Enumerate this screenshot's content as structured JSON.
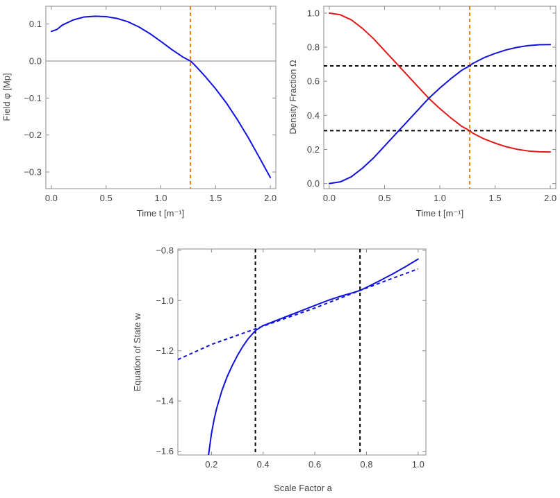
{
  "chart_data": [
    {
      "id": "field",
      "type": "line",
      "xlabel": "Time  t [m⁻¹]",
      "ylabel": "Field  φ [Mp]",
      "xlim": [
        -0.05,
        2.05
      ],
      "ylim": [
        -0.345,
        0.148
      ],
      "xticks": [
        0.0,
        0.5,
        1.0,
        1.5,
        2.0
      ],
      "xtick_labels": [
        "0.0",
        "0.5",
        "1.0",
        "1.5",
        "2.0"
      ],
      "yticks": [
        -0.3,
        -0.2,
        -0.1,
        0.0,
        0.1
      ],
      "ytick_labels": [
        "−0.3",
        "−0.2",
        "−0.1",
        "0.0",
        "0.1"
      ],
      "grid": false,
      "series": [
        {
          "color": "#1010dd",
          "style": "solid",
          "x": [
            0.0,
            0.05,
            0.1,
            0.2,
            0.3,
            0.4,
            0.5,
            0.6,
            0.7,
            0.8,
            0.9,
            1.0,
            1.1,
            1.2,
            1.27,
            1.3,
            1.4,
            1.5,
            1.6,
            1.7,
            1.8,
            1.9,
            2.0
          ],
          "y": [
            0.08,
            0.085,
            0.097,
            0.111,
            0.119,
            0.121,
            0.12,
            0.115,
            0.106,
            0.092,
            0.074,
            0.053,
            0.031,
            0.011,
            0.0,
            -0.008,
            -0.04,
            -0.075,
            -0.114,
            -0.159,
            -0.208,
            -0.261,
            -0.315
          ]
        }
      ],
      "reference_lines": [
        {
          "orientation": "horizontal",
          "value": 0.0,
          "color": "#808080",
          "style": "solid"
        },
        {
          "orientation": "vertical",
          "value": 1.27,
          "color": "#e8820c",
          "style": "dashed"
        }
      ]
    },
    {
      "id": "density",
      "type": "line",
      "xlabel": "Time  t [m⁻¹]",
      "ylabel": "Density Fraction  Ω",
      "xlim": [
        -0.05,
        2.05
      ],
      "ylim": [
        -0.03,
        1.04
      ],
      "xticks": [
        0.0,
        0.5,
        1.0,
        1.5,
        2.0
      ],
      "xtick_labels": [
        "0.0",
        "0.5",
        "1.0",
        "1.5",
        "2.0"
      ],
      "yticks": [
        0.0,
        0.2,
        0.4,
        0.6,
        0.8,
        1.0
      ],
      "ytick_labels": [
        "0.0",
        "0.2",
        "0.4",
        "0.6",
        "0.8",
        "1.0"
      ],
      "grid": false,
      "series": [
        {
          "color": "#e01818",
          "style": "solid",
          "x": [
            0.0,
            0.1,
            0.2,
            0.3,
            0.4,
            0.5,
            0.6,
            0.7,
            0.8,
            0.9,
            1.0,
            1.1,
            1.2,
            1.27,
            1.3,
            1.4,
            1.5,
            1.6,
            1.7,
            1.8,
            1.9,
            2.0
          ],
          "y": [
            1.0,
            0.99,
            0.96,
            0.91,
            0.85,
            0.78,
            0.71,
            0.64,
            0.57,
            0.5,
            0.44,
            0.385,
            0.335,
            0.31,
            0.295,
            0.262,
            0.237,
            0.216,
            0.201,
            0.191,
            0.186,
            0.185
          ]
        },
        {
          "color": "#1010dd",
          "style": "solid",
          "x": [
            0.0,
            0.1,
            0.2,
            0.3,
            0.4,
            0.5,
            0.6,
            0.7,
            0.8,
            0.9,
            1.0,
            1.1,
            1.2,
            1.27,
            1.3,
            1.4,
            1.5,
            1.6,
            1.7,
            1.8,
            1.9,
            2.0
          ],
          "y": [
            0.0,
            0.01,
            0.04,
            0.09,
            0.15,
            0.22,
            0.29,
            0.36,
            0.43,
            0.5,
            0.56,
            0.615,
            0.665,
            0.69,
            0.705,
            0.738,
            0.763,
            0.784,
            0.799,
            0.809,
            0.814,
            0.815
          ]
        }
      ],
      "reference_lines": [
        {
          "orientation": "horizontal",
          "value": 0.69,
          "color": "#000000",
          "style": "dashed"
        },
        {
          "orientation": "horizontal",
          "value": 0.31,
          "color": "#000000",
          "style": "dashed"
        },
        {
          "orientation": "vertical",
          "value": 1.27,
          "color": "#e8820c",
          "style": "dashed"
        }
      ]
    },
    {
      "id": "eos",
      "type": "line",
      "xlabel": "Scale Factor  a",
      "ylabel": "Equation of State  w",
      "xlim": [
        0.07,
        1.03
      ],
      "ylim": [
        -1.615,
        -0.795
      ],
      "xticks": [
        0.2,
        0.4,
        0.6,
        0.8,
        1.0
      ],
      "xtick_labels": [
        "0.2",
        "0.4",
        "0.6",
        "0.8",
        "1.0"
      ],
      "yticks": [
        -1.6,
        -1.4,
        -1.2,
        -1.0,
        -0.8
      ],
      "ytick_labels": [
        "−1.6",
        "−1.4",
        "−1.2",
        "−1.0",
        "−0.8"
      ],
      "grid": false,
      "series": [
        {
          "color": "#1010dd",
          "style": "solid",
          "x": [
            0.188,
            0.2,
            0.21,
            0.22,
            0.24,
            0.26,
            0.28,
            0.3,
            0.32,
            0.34,
            0.37,
            0.4,
            0.45,
            0.5,
            0.55,
            0.6,
            0.65,
            0.7,
            0.75,
            0.775,
            0.8,
            0.85,
            0.9,
            0.95,
            1.0
          ],
          "y": [
            -1.62,
            -1.53,
            -1.475,
            -1.43,
            -1.36,
            -1.305,
            -1.26,
            -1.22,
            -1.185,
            -1.155,
            -1.12,
            -1.1,
            -1.08,
            -1.06,
            -1.04,
            -1.02,
            -1.0,
            -0.983,
            -0.968,
            -0.96,
            -0.948,
            -0.922,
            -0.895,
            -0.866,
            -0.835
          ]
        },
        {
          "color": "#1010dd",
          "style": "dashed",
          "x": [
            0.07,
            0.2,
            0.37,
            0.5,
            0.6,
            0.775,
            0.9,
            1.0
          ],
          "y": [
            -1.235,
            -1.175,
            -1.113,
            -1.066,
            -1.03,
            -0.96,
            -0.912,
            -0.874
          ]
        }
      ],
      "reference_lines": [
        {
          "orientation": "vertical",
          "value": 0.37,
          "color": "#000000",
          "style": "dashed"
        },
        {
          "orientation": "vertical",
          "value": 0.775,
          "color": "#000000",
          "style": "dashed"
        }
      ]
    }
  ]
}
